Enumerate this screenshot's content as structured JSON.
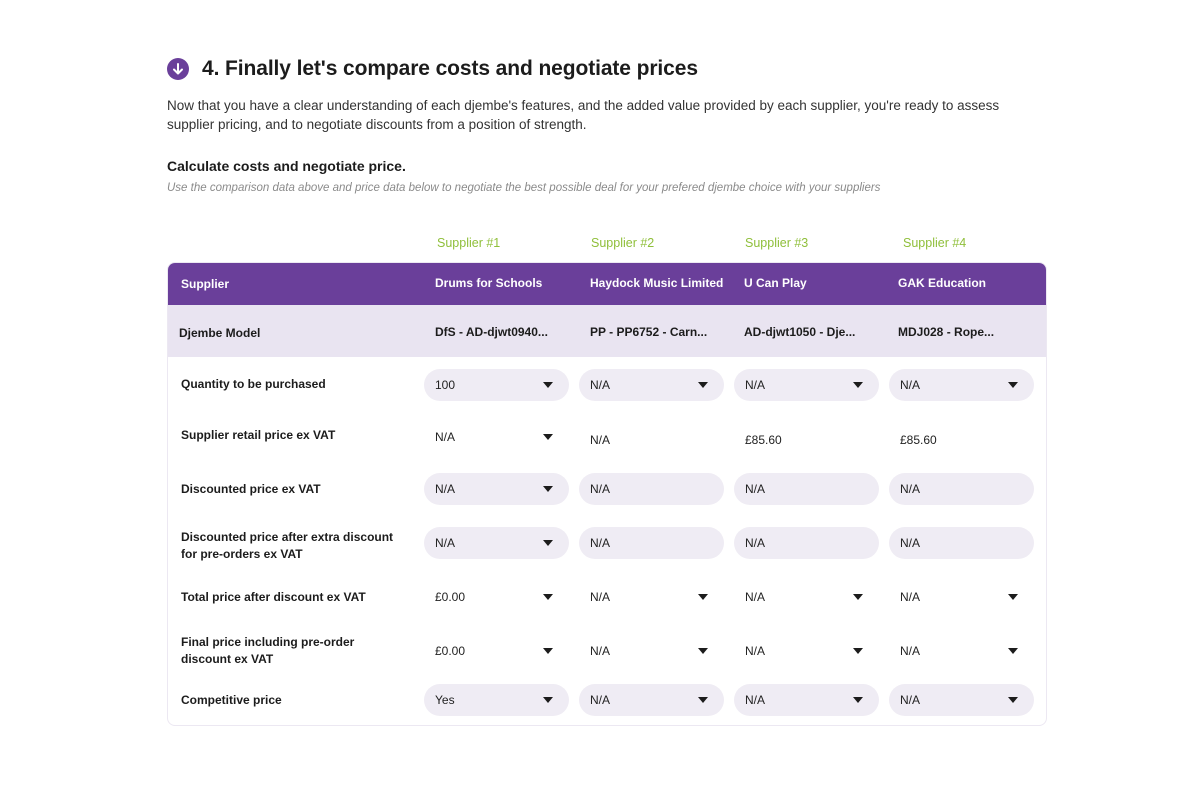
{
  "step": {
    "title": "4. Finally let's compare costs and negotiate prices",
    "intro": "Now that you have a clear understanding of each djembe's features, and the added value provided by each supplier, you're ready to assess supplier pricing, and to negotiate discounts from a position of strength.",
    "icon": "arrow-down-circle-icon",
    "accent": "#6a3f9a"
  },
  "section": {
    "title": "Calculate costs and negotiate price.",
    "hint": "Use the comparison data above and price data below to negotiate the best possible deal for your prefered djembe choice with your suppliers"
  },
  "supplier_numbers": [
    "Supplier #1",
    "Supplier #2",
    "Supplier #3",
    "Supplier #4"
  ],
  "table": {
    "header_label": "Supplier",
    "suppliers": [
      "Drums for Schools",
      "Haydock Music Limited",
      "U Can Play",
      "GAK Education"
    ],
    "model_label": "Djembe Model",
    "models": [
      "DfS - AD-djwt0940...",
      "PP - PP6752 - Carn...",
      "AD-djwt1050 - Dje...",
      "MDJ028 - Rope..."
    ],
    "rows": [
      {
        "label": "Quantity to be purchased",
        "values": [
          "100",
          "N/A",
          "N/A",
          "N/A"
        ]
      },
      {
        "label": "Supplier retail price ex VAT",
        "values": [
          "N/A",
          "N/A",
          "£85.60",
          "£85.60"
        ]
      },
      {
        "label": "Discounted price ex VAT",
        "values": [
          "N/A",
          "N/A",
          "N/A",
          "N/A"
        ]
      },
      {
        "label": "Discounted price after extra discount for pre-orders ex VAT",
        "values": [
          "N/A",
          "N/A",
          "N/A",
          "N/A"
        ]
      },
      {
        "label": "Total price after discount ex VAT",
        "values": [
          "£0.00",
          "N/A",
          "N/A",
          "N/A"
        ]
      },
      {
        "label": "Final price including pre-order discount ex VAT",
        "values": [
          "£0.00",
          "N/A",
          "N/A",
          "N/A"
        ]
      },
      {
        "label": "Competitive price",
        "values": [
          "Yes",
          "N/A",
          "N/A",
          "N/A"
        ]
      }
    ]
  }
}
